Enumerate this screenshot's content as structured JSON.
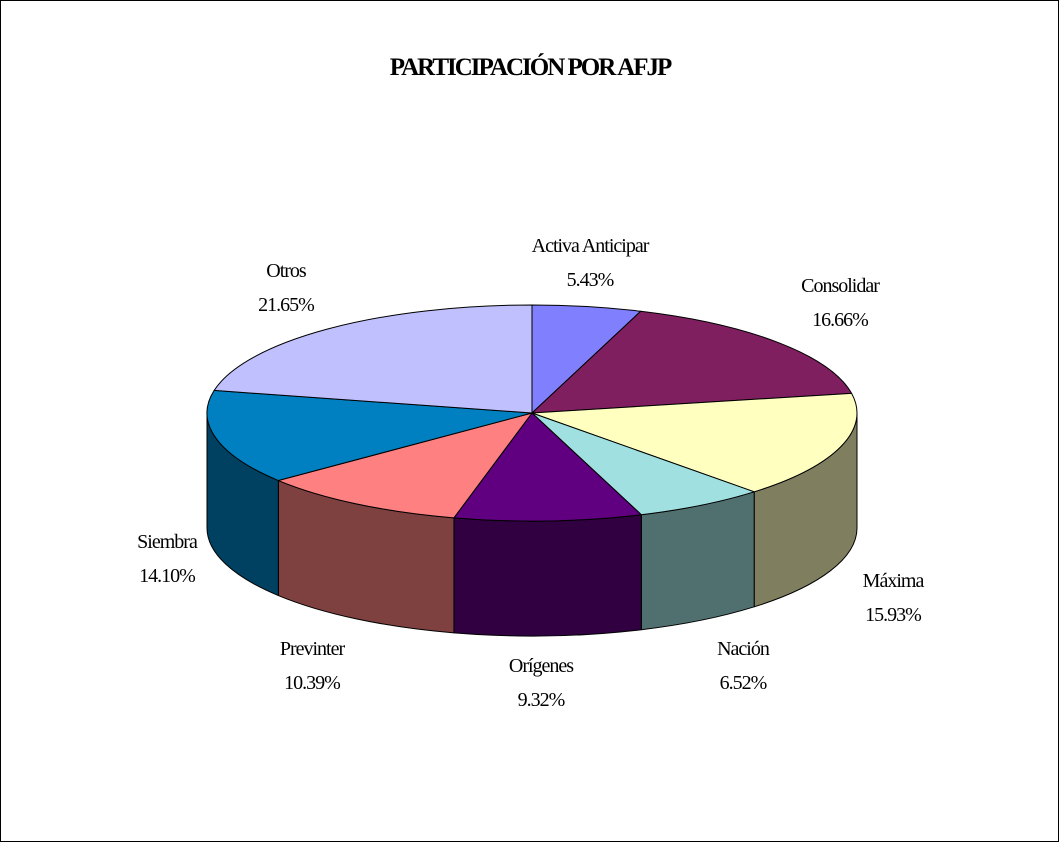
{
  "chart_data": {
    "type": "pie3d",
    "title": "PARTICIPACIÓN POR AFJP",
    "categories": [
      "Activa Anticipar",
      "Consolidar",
      "Máxima",
      "Nación",
      "Orígenes",
      "Previnter",
      "Siembra",
      "Otros"
    ],
    "values": [
      5.43,
      16.66,
      15.93,
      6.52,
      9.32,
      10.39,
      14.1,
      21.65
    ],
    "value_labels": [
      "5.43%",
      "16.66%",
      "15.93%",
      "6.52%",
      "9.32%",
      "10.39%",
      "14.10%",
      "21.65%"
    ],
    "colors": [
      "#8080ff",
      "#7f1f5f",
      "#ffffc0",
      "#a0e0e0",
      "#600080",
      "#ff8080",
      "#0080c0",
      "#c0c0ff"
    ]
  }
}
